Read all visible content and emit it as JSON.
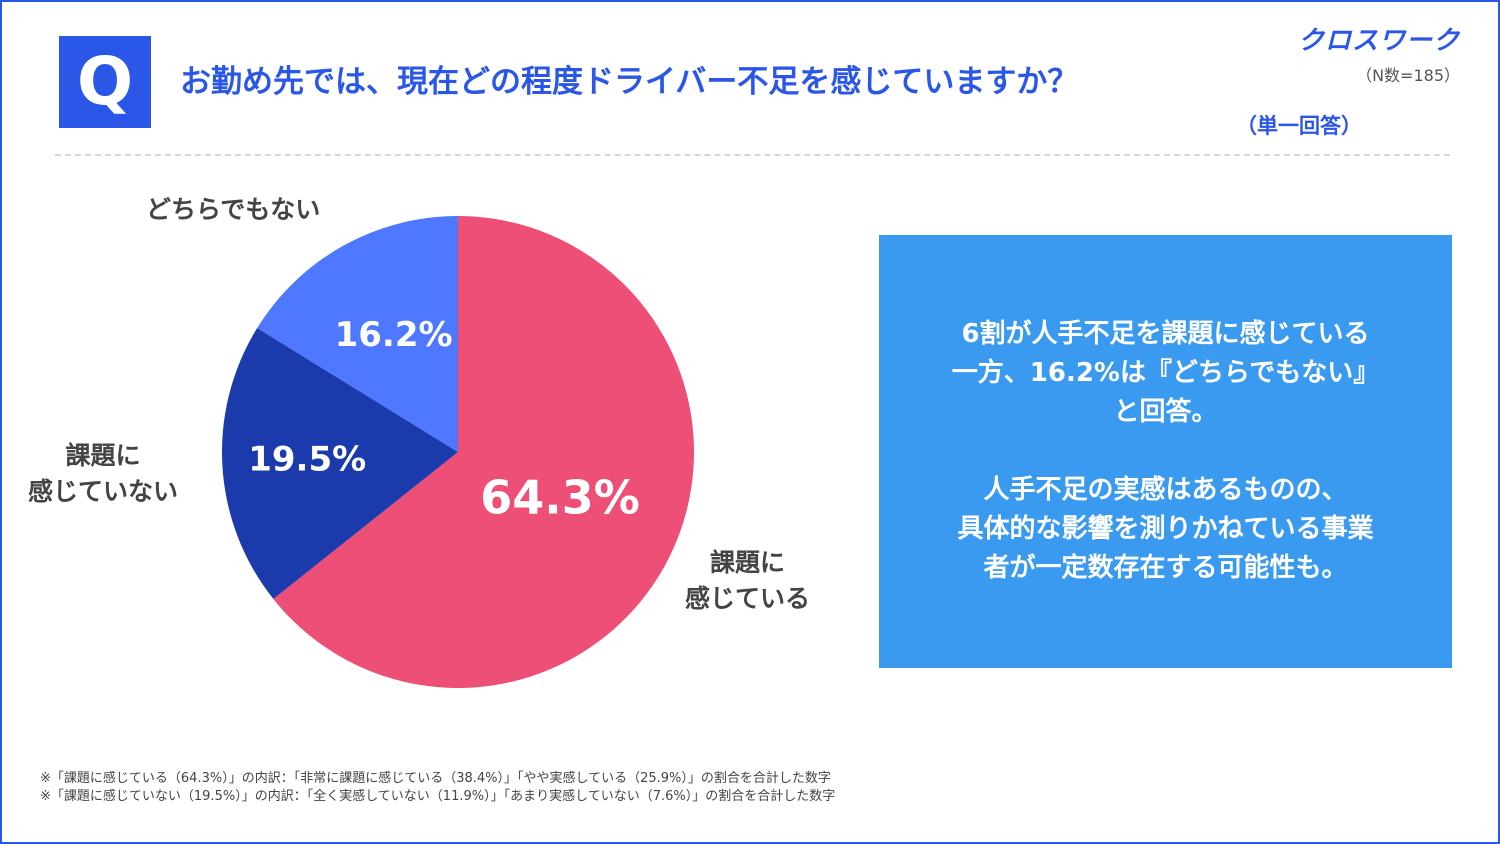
{
  "header": {
    "q_letter": "Q",
    "question": "お勤め先では、現在どの程度ドライバー不足を感じていますか？",
    "answer_type": "（単一回答）",
    "brand": "クロスワーク",
    "sample_size": "（N数=185）"
  },
  "colors": {
    "accent": "#2b57e8",
    "callout_bg": "#3a9af0"
  },
  "chart_data": {
    "type": "pie",
    "start_angle_deg": 0,
    "direction": "clockwise",
    "slices": [
      {
        "label": "課題に感じている",
        "label_lines": [
          "課題に",
          "感じている"
        ],
        "value": 64.3,
        "value_label": "64.3%",
        "color": "#ee4f76"
      },
      {
        "label": "課題に感じていない",
        "label_lines": [
          "課題に",
          "感じていない"
        ],
        "value": 19.5,
        "value_label": "19.5%",
        "color": "#1b3aab"
      },
      {
        "label": "どちらでもない",
        "label_lines": [
          "どちらでもない"
        ],
        "value": 16.2,
        "value_label": "16.2%",
        "color": "#4d78ff"
      }
    ]
  },
  "callout": {
    "lines_1": [
      "6割が人手不足を課題に感じている",
      "一方、16.2%は『どちらでもない』",
      "と回答。"
    ],
    "lines_2": [
      "人手不足の実感はあるものの、",
      "具体的な影響を測りかねている事業",
      "者が一定数存在する可能性も。"
    ]
  },
  "notes": [
    "※「課題に感じている（64.3%）」の内訳：「非常に課題に感じている（38.4%）」「やや実感している（25.9%）」の割合を合計した数字",
    "※「課題に感じていない（19.5%）」の内訳：「全く実感していない（11.9%）」「あまり実感していない（7.6%）」の割合を合計した数字"
  ]
}
